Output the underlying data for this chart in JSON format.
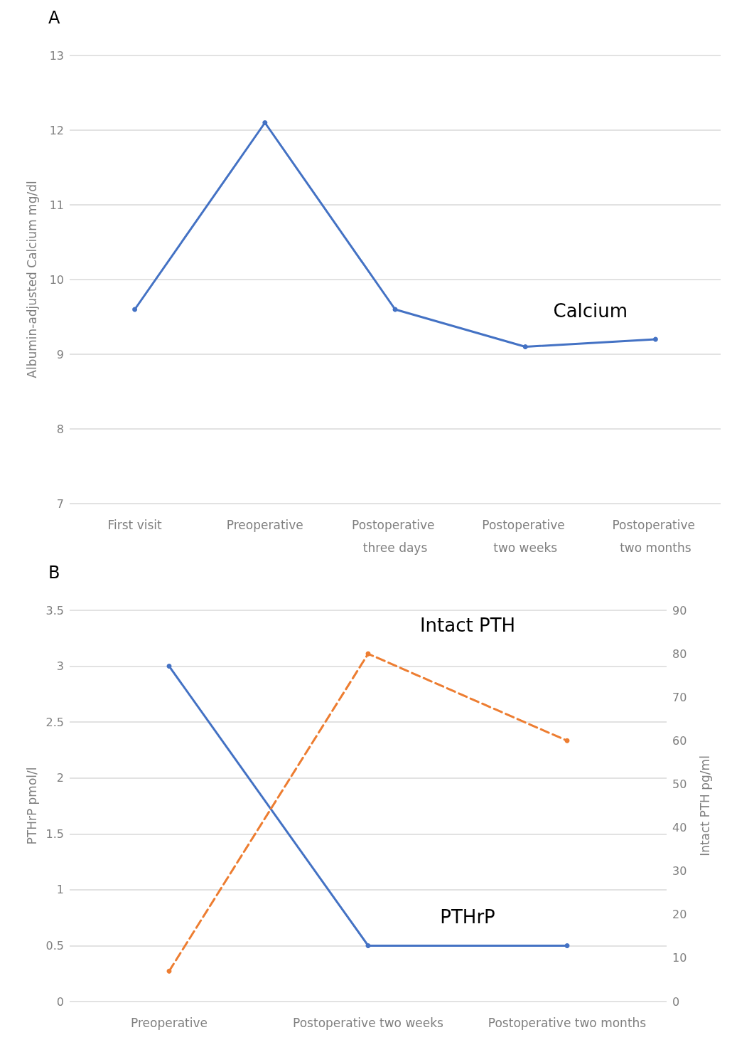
{
  "chart_data": [
    {
      "type": "line",
      "title": "A",
      "ylabel": "Albumin-adjusted Calcium mg/dl",
      "categories": [
        "First visit",
        "Preoperative",
        "Postoperative three days",
        "Postoperative two weeks",
        "Postoperative two months"
      ],
      "series": [
        {
          "name": "Calcium",
          "color": "#4472c4",
          "values": [
            9.6,
            12.1,
            9.6,
            9.1,
            9.2
          ]
        }
      ],
      "ylim": [
        7,
        13
      ],
      "yticks": [
        7,
        8,
        9,
        10,
        11,
        12,
        13
      ],
      "grid": "y",
      "marker": "circle",
      "line_style": "solid"
    },
    {
      "type": "line",
      "title": "B",
      "ylabel": "PTHrP pmol/l",
      "y2label": "Intact PTH pg/ml",
      "categories": [
        "Preoperative",
        "Postoperative two weeks",
        "Postoperative two months"
      ],
      "series": [
        {
          "name": "PTHrP",
          "color": "#4472c4",
          "values": [
            3,
            0.5,
            0.5
          ]
        },
        {
          "name": "Intact PTH",
          "color": "#ed7d31",
          "values": [
            7,
            80,
            60
          ],
          "axis": "y2",
          "line_style": "dashed"
        }
      ],
      "ylim": [
        0,
        3.5
      ],
      "yticks": [
        0,
        0.5,
        1,
        1.5,
        2,
        2.5,
        3,
        3.5
      ],
      "y2lim": [
        0,
        90
      ],
      "y2ticks": [
        0,
        10,
        20,
        30,
        40,
        50,
        60,
        70,
        80,
        90
      ],
      "grid": "y",
      "marker": "circle",
      "line_style": "solid"
    }
  ]
}
